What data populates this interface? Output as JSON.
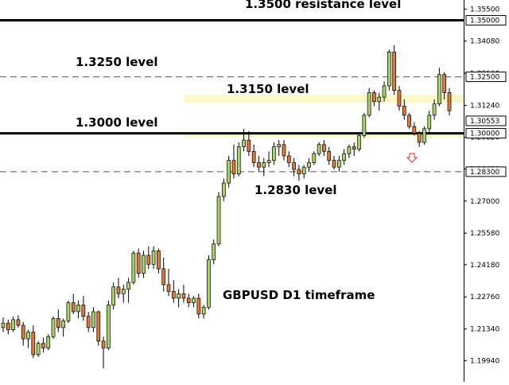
{
  "chart_data": {
    "type": "candlestick",
    "title": "GBPUSD D1 timeframe",
    "ylim": [
      1.19,
      1.359
    ],
    "yaxis_position": "right",
    "y_ticks": [
      "1.35500",
      "1.34080",
      "1.32660",
      "1.31240",
      "1.29820",
      "1.28420",
      "1.27000",
      "1.25580",
      "1.24180",
      "1.22760",
      "1.21340",
      "1.19940"
    ],
    "levels": [
      {
        "name": "resistance",
        "value": 1.35,
        "label": "1.3500 resistance level",
        "tag": "1.35000",
        "style": "solid-thick"
      },
      {
        "name": "level-13250",
        "value": 1.325,
        "label": "1.3250 level",
        "tag": "1.32500",
        "style": "dashed"
      },
      {
        "name": "level-13150",
        "value": 1.315,
        "label": "1.3150 level",
        "tag": "",
        "style": "zone"
      },
      {
        "name": "level-13000",
        "value": 1.3,
        "label": "1.3000 level",
        "tag": "1.30000",
        "style": "solid-thick"
      },
      {
        "name": "level-12830",
        "value": 1.283,
        "label": "1.2830 level",
        "tag": "1.28300",
        "style": "dashed"
      }
    ],
    "current_price_tag": "1.30553",
    "current_price": 1.3055,
    "zones": [
      {
        "name": "zone-13150",
        "from": 1.3135,
        "to": 1.317
      },
      {
        "name": "zone-13000",
        "from": 1.2982,
        "to": 1.3005
      }
    ],
    "candles": [
      [
        1.214,
        1.2185,
        1.212,
        1.216
      ],
      [
        1.216,
        1.2175,
        1.211,
        1.213
      ],
      [
        1.213,
        1.219,
        1.212,
        1.2175
      ],
      [
        1.2175,
        1.2195,
        1.214,
        1.215
      ],
      [
        1.215,
        1.2165,
        1.206,
        1.209
      ],
      [
        1.209,
        1.213,
        1.205,
        1.212
      ],
      [
        1.212,
        1.215,
        1.2005,
        1.202
      ],
      [
        1.202,
        1.208,
        1.201,
        1.207
      ],
      [
        1.207,
        1.2095,
        1.203,
        1.205
      ],
      [
        1.205,
        1.211,
        1.204,
        1.21
      ],
      [
        1.21,
        1.219,
        1.209,
        1.218
      ],
      [
        1.218,
        1.222,
        1.212,
        1.214
      ],
      [
        1.214,
        1.218,
        1.21,
        1.217
      ],
      [
        1.217,
        1.226,
        1.216,
        1.225
      ],
      [
        1.225,
        1.229,
        1.22,
        1.221
      ],
      [
        1.221,
        1.226,
        1.218,
        1.224
      ],
      [
        1.224,
        1.228,
        1.217,
        1.219
      ],
      [
        1.219,
        1.221,
        1.212,
        1.214
      ],
      [
        1.214,
        1.223,
        1.212,
        1.221
      ],
      [
        1.221,
        1.2215,
        1.206,
        1.208
      ],
      [
        1.208,
        1.21,
        1.196,
        1.205
      ],
      [
        1.205,
        1.226,
        1.204,
        1.224
      ],
      [
        1.224,
        1.234,
        1.222,
        1.232
      ],
      [
        1.232,
        1.236,
        1.227,
        1.229
      ],
      [
        1.229,
        1.233,
        1.225,
        1.231
      ],
      [
        1.231,
        1.236,
        1.225,
        1.234
      ],
      [
        1.234,
        1.248,
        1.233,
        1.247
      ],
      [
        1.247,
        1.249,
        1.236,
        1.238
      ],
      [
        1.238,
        1.248,
        1.236,
        1.246
      ],
      [
        1.246,
        1.25,
        1.24,
        1.242
      ],
      [
        1.242,
        1.25,
        1.24,
        1.248
      ],
      [
        1.248,
        1.249,
        1.238,
        1.24
      ],
      [
        1.24,
        1.245,
        1.23,
        1.233
      ],
      [
        1.233,
        1.24,
        1.228,
        1.23
      ],
      [
        1.23,
        1.235,
        1.225,
        1.227
      ],
      [
        1.227,
        1.231,
        1.223,
        1.229
      ],
      [
        1.229,
        1.233,
        1.225,
        1.227
      ],
      [
        1.227,
        1.229,
        1.223,
        1.225
      ],
      [
        1.225,
        1.228,
        1.223,
        1.227
      ],
      [
        1.227,
        1.229,
        1.218,
        1.22
      ],
      [
        1.22,
        1.224,
        1.218,
        1.223
      ],
      [
        1.223,
        1.246,
        1.222,
        1.244
      ],
      [
        1.244,
        1.253,
        1.242,
        1.251
      ],
      [
        1.251,
        1.274,
        1.25,
        1.272
      ],
      [
        1.272,
        1.28,
        1.27,
        1.278
      ],
      [
        1.278,
        1.29,
        1.276,
        1.288
      ],
      [
        1.288,
        1.295,
        1.28,
        1.282
      ],
      [
        1.282,
        1.296,
        1.281,
        1.294
      ],
      [
        1.294,
        1.302,
        1.292,
        1.297
      ],
      [
        1.297,
        1.301,
        1.29,
        1.292
      ],
      [
        1.292,
        1.295,
        1.285,
        1.287
      ],
      [
        1.287,
        1.29,
        1.283,
        1.285
      ],
      [
        1.285,
        1.289,
        1.281,
        1.287
      ],
      [
        1.287,
        1.292,
        1.285,
        1.288
      ],
      [
        1.288,
        1.296,
        1.286,
        1.294
      ],
      [
        1.294,
        1.297,
        1.29,
        1.295
      ],
      [
        1.295,
        1.297,
        1.288,
        1.29
      ],
      [
        1.29,
        1.292,
        1.285,
        1.287
      ],
      [
        1.287,
        1.289,
        1.281,
        1.284
      ],
      [
        1.284,
        1.286,
        1.279,
        1.282
      ],
      [
        1.282,
        1.286,
        1.28,
        1.285
      ],
      [
        1.285,
        1.289,
        1.283,
        1.287
      ],
      [
        1.287,
        1.292,
        1.286,
        1.291
      ],
      [
        1.291,
        1.296,
        1.29,
        1.295
      ],
      [
        1.295,
        1.297,
        1.29,
        1.292
      ],
      [
        1.292,
        1.294,
        1.286,
        1.288
      ],
      [
        1.288,
        1.29,
        1.284,
        1.285
      ],
      [
        1.285,
        1.29,
        1.283,
        1.288
      ],
      [
        1.288,
        1.293,
        1.286,
        1.291
      ],
      [
        1.291,
        1.295,
        1.289,
        1.294
      ],
      [
        1.294,
        1.296,
        1.29,
        1.293
      ],
      [
        1.293,
        1.3,
        1.292,
        1.299
      ],
      [
        1.299,
        1.309,
        1.298,
        1.308
      ],
      [
        1.308,
        1.32,
        1.307,
        1.318
      ],
      [
        1.318,
        1.319,
        1.312,
        1.314
      ],
      [
        1.314,
        1.318,
        1.31,
        1.316
      ],
      [
        1.316,
        1.323,
        1.314,
        1.321
      ],
      [
        1.321,
        1.337,
        1.319,
        1.336
      ],
      [
        1.336,
        1.339,
        1.317,
        1.319
      ],
      [
        1.319,
        1.321,
        1.31,
        1.312
      ],
      [
        1.312,
        1.315,
        1.306,
        1.308
      ],
      [
        1.308,
        1.309,
        1.302,
        1.303
      ],
      [
        1.303,
        1.305,
        1.299,
        1.3
      ],
      [
        1.3,
        1.301,
        1.294,
        1.296
      ],
      [
        1.296,
        1.303,
        1.295,
        1.302
      ],
      [
        1.302,
        1.31,
        1.3,
        1.308
      ],
      [
        1.308,
        1.315,
        1.306,
        1.313
      ],
      [
        1.313,
        1.329,
        1.312,
        1.326
      ],
      [
        1.326,
        1.327,
        1.315,
        1.318
      ],
      [
        1.318,
        1.32,
        1.308,
        1.31
      ]
    ]
  }
}
